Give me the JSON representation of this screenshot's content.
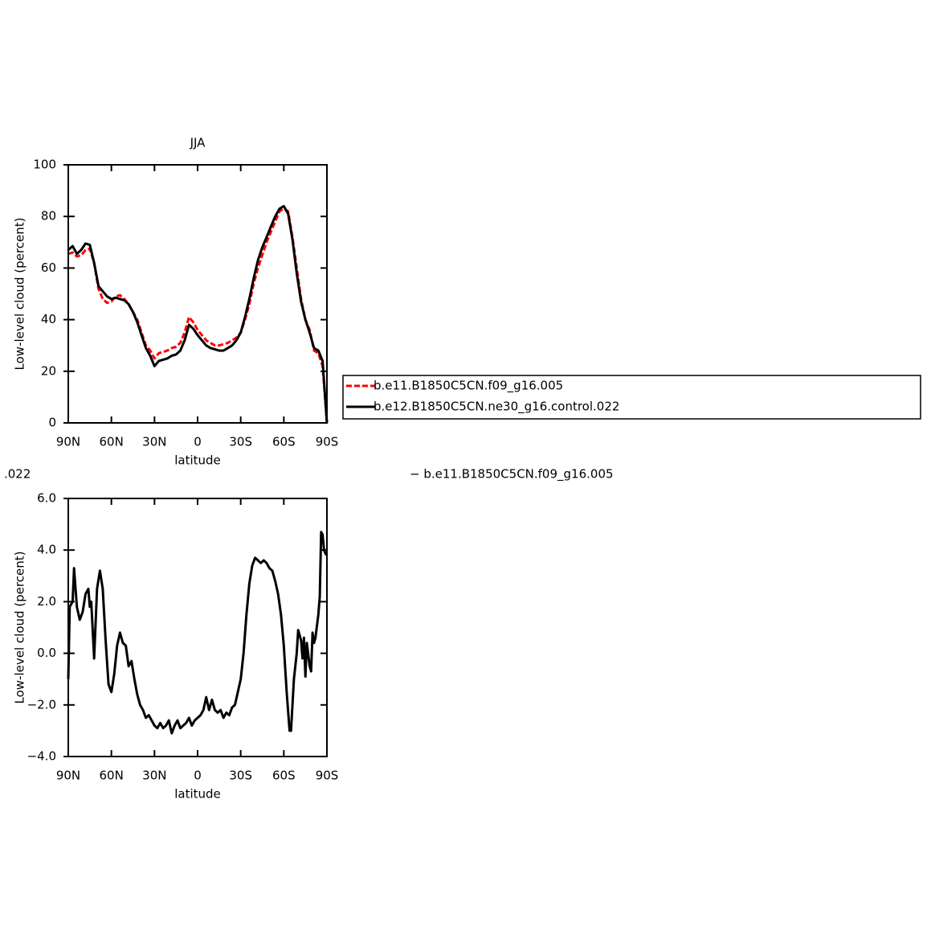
{
  "chart_data": [
    {
      "type": "line",
      "title": "JJA",
      "xlabel": "latitude",
      "ylabel": "Low-level cloud (percent)",
      "x": [
        90,
        87,
        84,
        81,
        78,
        75,
        72,
        69,
        66,
        63,
        60,
        57,
        54,
        51,
        48,
        45,
        42,
        39,
        36,
        33,
        30,
        27,
        24,
        21,
        18,
        15,
        12,
        9,
        6,
        3,
        0,
        -3,
        -6,
        -9,
        -12,
        -15,
        -18,
        -21,
        -24,
        -27,
        -30,
        -33,
        -36,
        -39,
        -42,
        -45,
        -48,
        -51,
        -54,
        -57,
        -60,
        -63,
        -66,
        -69,
        -72,
        -75,
        -78,
        -81,
        -84,
        -87,
        -90
      ],
      "series": [
        {
          "name": "b.e11.B1850C5CN.f09_g16.005",
          "color": "#ff0000",
          "dashed": true,
          "values": [
            65.5,
            66,
            64.5,
            65,
            67,
            67.5,
            62,
            52,
            48,
            46.5,
            47,
            49,
            49.5,
            48,
            46,
            43,
            40,
            35,
            30,
            28,
            25,
            27,
            27.5,
            28,
            29,
            29.5,
            31,
            35,
            41,
            39,
            36,
            34,
            32,
            31,
            30,
            30,
            30.5,
            31,
            32,
            33,
            35,
            40,
            46,
            54,
            60,
            65,
            70,
            74,
            78,
            82,
            83,
            82,
            72,
            60,
            48,
            40,
            36,
            28,
            27,
            22,
            0
          ]
        },
        {
          "name": "b.e12.B1850C5CN.ne30_g16.control.022",
          "color": "#000000",
          "dashed": false,
          "values": [
            67,
            68.5,
            65.5,
            67,
            69.5,
            69,
            62,
            53,
            51,
            49,
            48,
            48.5,
            48,
            47.5,
            46,
            43,
            39,
            34,
            29,
            26,
            22,
            24,
            24.5,
            25,
            26,
            26.5,
            28,
            32,
            38,
            36.5,
            34,
            32,
            30,
            29,
            28.5,
            28,
            28,
            29,
            30,
            32,
            35,
            41,
            48,
            56,
            63,
            68,
            72,
            76,
            80,
            83,
            84,
            81,
            71,
            58,
            47,
            40,
            35,
            29,
            28,
            24,
            0
          ]
        }
      ],
      "xlim": [
        90,
        -90
      ],
      "xticks": [
        {
          "value": 90,
          "label": "90N"
        },
        {
          "value": 60,
          "label": "60N"
        },
        {
          "value": 30,
          "label": "30N"
        },
        0,
        {
          "value": -30,
          "label": "30S"
        },
        {
          "value": -60,
          "label": "60S"
        },
        {
          "value": -90,
          "label": "90S"
        }
      ],
      "ylim": [
        0,
        100
      ],
      "yticks": [
        0,
        20,
        40,
        60,
        80,
        100
      ],
      "legend": "right"
    },
    {
      "type": "line",
      "xlabel": "latitude",
      "ylabel": "Low-level cloud (percent)",
      "annotations": [
        ".022",
        "− b.e11.B1850C5CN.f09_g16.005"
      ],
      "x": [
        90,
        89,
        87,
        86,
        84,
        82,
        80,
        78,
        76,
        75,
        74,
        72,
        70,
        68,
        66,
        64,
        62,
        60,
        58,
        56,
        54,
        52,
        50,
        48,
        46,
        44,
        42,
        40,
        38,
        36,
        34,
        32,
        30,
        28,
        26,
        24,
        22,
        20,
        18,
        16,
        14,
        12,
        10,
        8,
        6,
        4,
        2,
        0,
        -2,
        -4,
        -6,
        -8,
        -10,
        -12,
        -14,
        -16,
        -18,
        -20,
        -22,
        -24,
        -26,
        -28,
        -30,
        -32,
        -34,
        -36,
        -38,
        -40,
        -42,
        -44,
        -46,
        -48,
        -50,
        -52,
        -54,
        -56,
        -58,
        -60,
        -62,
        -64,
        -65,
        -67,
        -69,
        -70,
        -72,
        -73,
        -74,
        -75,
        -76,
        -78,
        -79,
        -80,
        -81,
        -82,
        -84,
        -85,
        -86,
        -87,
        -88,
        -89.5
      ],
      "series": [
        {
          "name": null,
          "color": "#000000",
          "dashed": false,
          "values": [
            -1,
            1.8,
            2,
            3.3,
            1.8,
            1.3,
            1.6,
            2.3,
            2.5,
            1.8,
            2.0,
            -0.2,
            2.5,
            3.2,
            2.5,
            0.5,
            -1.2,
            -1.5,
            -0.8,
            0.3,
            0.8,
            0.4,
            0.3,
            -0.5,
            -0.3,
            -1.0,
            -1.6,
            -2.0,
            -2.2,
            -2.5,
            -2.4,
            -2.6,
            -2.8,
            -2.9,
            -2.7,
            -2.9,
            -2.8,
            -2.6,
            -3.1,
            -2.8,
            -2.6,
            -2.9,
            -2.8,
            -2.7,
            -2.5,
            -2.8,
            -2.6,
            -2.5,
            -2.4,
            -2.2,
            -1.7,
            -2.2,
            -1.8,
            -2.2,
            -2.3,
            -2.2,
            -2.5,
            -2.3,
            -2.4,
            -2.1,
            -2.0,
            -1.5,
            -1.0,
            0,
            1.5,
            2.7,
            3.4,
            3.7,
            3.6,
            3.5,
            3.6,
            3.5,
            3.3,
            3.2,
            2.8,
            2.3,
            1.5,
            0.3,
            -1.5,
            -3.0,
            -3.0,
            -1.0,
            0.0,
            0.9,
            0.5,
            -0.2,
            0.6,
            -0.9,
            0.4,
            -0.5,
            -0.7,
            0.8,
            0.4,
            0.6,
            1.5,
            2.2,
            4.7,
            4.6,
            4.0,
            3.8
          ]
        }
      ],
      "xlim": [
        90,
        -90
      ],
      "xticks": [
        {
          "value": 90,
          "label": "90N"
        },
        {
          "value": 60,
          "label": "60N"
        },
        {
          "value": 30,
          "label": "30N"
        },
        0,
        {
          "value": -30,
          "label": "30S"
        },
        {
          "value": -60,
          "label": "60S"
        },
        {
          "value": -90,
          "label": "90S"
        }
      ],
      "ylim": [
        -4,
        6
      ],
      "yticks": [
        {
          "value": -4,
          "label": "−4.0"
        },
        {
          "value": -2,
          "label": "−2.0"
        },
        {
          "value": 0,
          "label": "0.0"
        },
        {
          "value": 2,
          "label": "2.0"
        },
        {
          "value": 4,
          "label": "4.0"
        },
        {
          "value": 6,
          "label": "6.0"
        }
      ]
    }
  ]
}
